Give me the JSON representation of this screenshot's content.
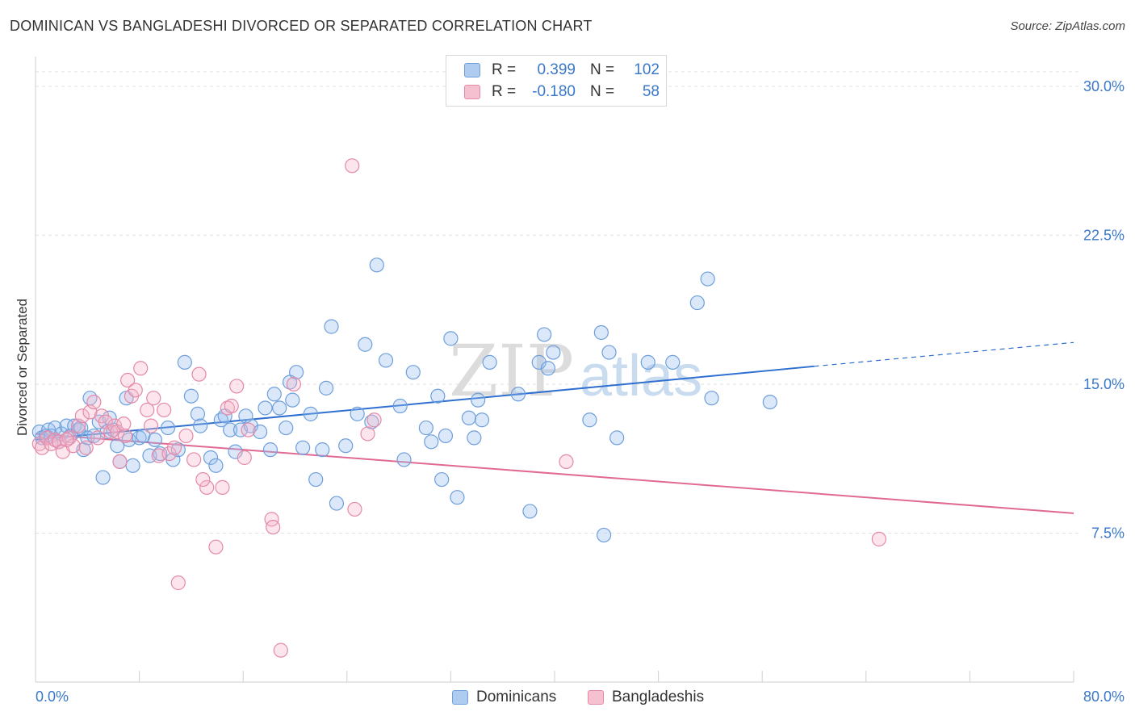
{
  "header": {
    "title": "DOMINICAN VS BANGLADESHI DIVORCED OR SEPARATED CORRELATION CHART",
    "source": "Source: ZipAtlas.com"
  },
  "watermark": {
    "zip": "ZIP",
    "atlas": "atlas"
  },
  "legend_stats": [
    {
      "r_label": "R =",
      "r_value": "0.399",
      "n_label": "N =",
      "n_value": "102",
      "color": "#aecbf0",
      "border": "#6f9fdb"
    },
    {
      "r_label": "R =",
      "r_value": "-0.180",
      "n_label": "N =",
      "n_value": "58",
      "color": "#f5c0d0",
      "border": "#e48aa8"
    }
  ],
  "chart_data": {
    "type": "scatter",
    "title": "DOMINICAN VS BANGLADESHI DIVORCED OR SEPARATED CORRELATION CHART",
    "xlabel": "",
    "ylabel": "Divorced or Separated",
    "xlim": [
      0,
      80
    ],
    "ylim": [
      0,
      31.5
    ],
    "x_tick_labels": [
      "0.0%",
      "80.0%"
    ],
    "y_ticks": [
      7.5,
      15.0,
      22.5,
      30.0
    ],
    "y_tick_labels": [
      "7.5%",
      "15.0%",
      "22.5%",
      "30.0%"
    ],
    "grid": true,
    "series": [
      {
        "name": "Dominicans",
        "color": "#6f9fdb",
        "fill": "rgba(150,190,240,0.35)",
        "trend": {
          "x0": 0,
          "y0": 12.2,
          "x1": 60,
          "y1": 15.9,
          "dash_x1": 80,
          "dash_y1": 17.1,
          "color": "#2f6fd0"
        },
        "points": [
          [
            0.3,
            12.6
          ],
          [
            0.5,
            12.3
          ],
          [
            0.8,
            12.4
          ],
          [
            1.0,
            12.7
          ],
          [
            1.2,
            12.4
          ],
          [
            1.5,
            12.8
          ],
          [
            1.8,
            12.1
          ],
          [
            2.0,
            12.5
          ],
          [
            2.4,
            12.9
          ],
          [
            2.7,
            12.4
          ],
          [
            3.0,
            12.9
          ],
          [
            3.3,
            12.7
          ],
          [
            3.5,
            12.8
          ],
          [
            3.7,
            11.7
          ],
          [
            4.0,
            12.3
          ],
          [
            4.2,
            14.3
          ],
          [
            4.5,
            12.4
          ],
          [
            4.9,
            13.1
          ],
          [
            5.2,
            10.3
          ],
          [
            5.5,
            12.6
          ],
          [
            5.7,
            13.3
          ],
          [
            6.0,
            12.7
          ],
          [
            6.5,
            11.1
          ],
          [
            7.0,
            14.3
          ],
          [
            7.2,
            12.2
          ],
          [
            7.5,
            10.9
          ],
          [
            8.0,
            12.3
          ],
          [
            8.3,
            12.4
          ],
          [
            8.8,
            11.4
          ],
          [
            9.2,
            12.2
          ],
          [
            9.6,
            11.5
          ],
          [
            10.2,
            12.8
          ],
          [
            10.6,
            11.2
          ],
          [
            11.0,
            11.7
          ],
          [
            11.5,
            16.1
          ],
          [
            12.0,
            14.4
          ],
          [
            12.5,
            13.5
          ],
          [
            12.7,
            12.9
          ],
          [
            13.5,
            11.3
          ],
          [
            13.9,
            10.9
          ],
          [
            14.3,
            13.2
          ],
          [
            14.6,
            13.4
          ],
          [
            15.0,
            12.7
          ],
          [
            15.4,
            11.6
          ],
          [
            15.8,
            12.7
          ],
          [
            16.2,
            13.4
          ],
          [
            16.6,
            12.9
          ],
          [
            17.3,
            12.6
          ],
          [
            17.7,
            13.8
          ],
          [
            18.1,
            11.7
          ],
          [
            18.4,
            14.5
          ],
          [
            18.8,
            13.8
          ],
          [
            19.3,
            12.8
          ],
          [
            19.6,
            15.1
          ],
          [
            19.8,
            14.2
          ],
          [
            20.1,
            15.6
          ],
          [
            20.6,
            11.8
          ],
          [
            21.2,
            13.5
          ],
          [
            21.6,
            10.2
          ],
          [
            22.1,
            11.7
          ],
          [
            22.4,
            14.8
          ],
          [
            22.8,
            17.9
          ],
          [
            23.2,
            9.0
          ],
          [
            23.9,
            11.9
          ],
          [
            24.8,
            13.5
          ],
          [
            25.4,
            17.0
          ],
          [
            25.9,
            13.1
          ],
          [
            26.3,
            21.0
          ],
          [
            27.0,
            16.2
          ],
          [
            28.1,
            13.9
          ],
          [
            28.4,
            11.2
          ],
          [
            29.1,
            15.6
          ],
          [
            30.1,
            12.8
          ],
          [
            30.5,
            12.1
          ],
          [
            31.0,
            14.4
          ],
          [
            31.3,
            10.2
          ],
          [
            31.6,
            12.4
          ],
          [
            32.0,
            17.3
          ],
          [
            32.5,
            9.3
          ],
          [
            33.4,
            13.3
          ],
          [
            33.8,
            12.3
          ],
          [
            34.1,
            14.2
          ],
          [
            34.4,
            13.2
          ],
          [
            35.0,
            16.1
          ],
          [
            37.2,
            14.5
          ],
          [
            38.1,
            8.6
          ],
          [
            38.8,
            16.1
          ],
          [
            39.2,
            17.5
          ],
          [
            39.5,
            15.8
          ],
          [
            39.9,
            16.6
          ],
          [
            42.7,
            13.2
          ],
          [
            43.6,
            17.6
          ],
          [
            43.8,
            7.4
          ],
          [
            44.2,
            16.6
          ],
          [
            44.8,
            12.3
          ],
          [
            47.2,
            16.1
          ],
          [
            49.1,
            16.1
          ],
          [
            51.0,
            19.1
          ],
          [
            51.8,
            20.3
          ],
          [
            52.1,
            14.3
          ],
          [
            56.6,
            14.1
          ],
          [
            6.3,
            11.9
          ]
        ]
      },
      {
        "name": "Bangladeshis",
        "color": "#e48aa8",
        "fill": "rgba(245,180,200,0.35)",
        "trend": {
          "x0": 0,
          "y0": 12.5,
          "x1": 80,
          "y1": 8.5,
          "color": "#e06a94"
        },
        "points": [
          [
            0.3,
            12.0
          ],
          [
            0.5,
            11.8
          ],
          [
            0.9,
            12.3
          ],
          [
            1.2,
            12.0
          ],
          [
            1.5,
            12.2
          ],
          [
            1.8,
            12.1
          ],
          [
            2.1,
            11.6
          ],
          [
            2.6,
            12.3
          ],
          [
            2.9,
            11.9
          ],
          [
            3.3,
            12.9
          ],
          [
            3.6,
            13.4
          ],
          [
            3.9,
            11.8
          ],
          [
            4.2,
            13.6
          ],
          [
            4.5,
            14.1
          ],
          [
            4.8,
            12.3
          ],
          [
            5.1,
            13.4
          ],
          [
            5.4,
            13.1
          ],
          [
            5.8,
            12.6
          ],
          [
            6.1,
            12.9
          ],
          [
            6.3,
            12.6
          ],
          [
            6.5,
            11.1
          ],
          [
            6.8,
            13.0
          ],
          [
            7.1,
            15.2
          ],
          [
            7.4,
            14.4
          ],
          [
            7.7,
            14.7
          ],
          [
            8.1,
            15.8
          ],
          [
            8.6,
            13.7
          ],
          [
            9.1,
            14.3
          ],
          [
            9.5,
            11.4
          ],
          [
            9.9,
            13.7
          ],
          [
            10.3,
            11.5
          ],
          [
            10.7,
            11.8
          ],
          [
            11.0,
            5.0
          ],
          [
            11.6,
            12.4
          ],
          [
            12.2,
            11.2
          ],
          [
            12.6,
            15.5
          ],
          [
            13.2,
            9.8
          ],
          [
            13.9,
            6.8
          ],
          [
            14.4,
            9.8
          ],
          [
            14.8,
            13.8
          ],
          [
            15.1,
            13.9
          ],
          [
            15.5,
            14.9
          ],
          [
            16.1,
            11.3
          ],
          [
            16.4,
            12.7
          ],
          [
            18.2,
            8.2
          ],
          [
            18.3,
            7.8
          ],
          [
            18.9,
            1.6
          ],
          [
            19.9,
            15.0
          ],
          [
            24.6,
            8.7
          ],
          [
            25.6,
            12.5
          ],
          [
            26.1,
            13.2
          ],
          [
            24.4,
            26.0
          ],
          [
            40.9,
            11.1
          ],
          [
            65.0,
            7.2
          ],
          [
            12.9,
            10.2
          ],
          [
            8.9,
            12.9
          ],
          [
            6.9,
            12.4
          ],
          [
            2.4,
            12.2
          ]
        ]
      }
    ]
  }
}
